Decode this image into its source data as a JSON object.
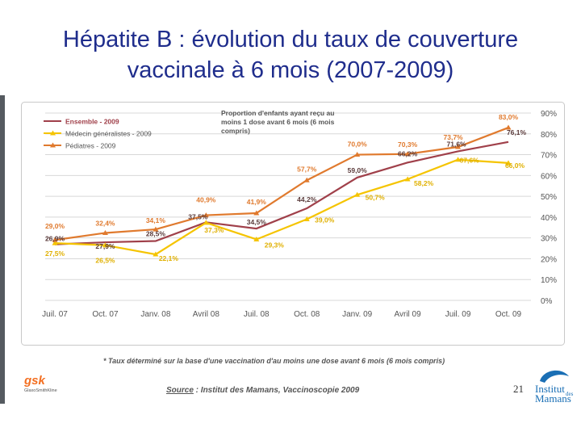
{
  "slide": {
    "title_line1": "Hépatite B : évolution du taux de couverture",
    "title_line2": "vaccinale à 6 mois (2007-2009)",
    "footnote": "* Taux déterminé sur la base d'une vaccination d'au moins une dose avant 6 mois (6 mois compris)",
    "source_label": "Source",
    "source_text": " : Institut des Mamans, Vaccinoscopie 2009",
    "page_number": "21",
    "logo_left": "gsk",
    "logo_left_sub": "GlaxoSmithKline",
    "logo_right_line1": "Institut",
    "logo_right_line2": "des",
    "logo_right_line3": "Mamans"
  },
  "chart_data": {
    "type": "line",
    "title": "Proportion d'enfants ayant reçu au moins 1 dose avant 6 mois (6 mois compris)",
    "title_lines": [
      "Proportion d'enfants ayant reçu au",
      "moins 1 dose avant 6 mois (6 mois",
      "compris)"
    ],
    "categories": [
      "Juil. 07",
      "Oct. 07",
      "Janv. 08",
      "Avril 08",
      "Juil. 08",
      "Oct. 08",
      "Janv. 09",
      "Avril 09",
      "Juil. 09",
      "Oct. 09"
    ],
    "series": [
      {
        "name": "Ensemble - 2009",
        "color": "#a0404a",
        "values": [
          26.9,
          27.9,
          28.5,
          37.5,
          34.5,
          44.2,
          59.0,
          66.2,
          71.6,
          76.1
        ],
        "labels": [
          "26,9%",
          "27,9%",
          "28,5%",
          "37,5%",
          "34,5%",
          "44,2%",
          "59,0%",
          "66,2%",
          "71,6%",
          "76,1%"
        ]
      },
      {
        "name": "Médecin généralistes - 2009",
        "color": "#f5c400",
        "values": [
          27.5,
          26.5,
          22.1,
          37.3,
          29.3,
          39.0,
          50.7,
          58.2,
          67.6,
          66.0
        ],
        "labels": [
          "27,5%",
          "26,5%",
          "22,1%",
          "37,3%",
          "29,3%",
          "39,0%",
          "50,7%",
          "58,2%",
          "67,6%",
          "66,0%"
        ]
      },
      {
        "name": "Pédiatres - 2009",
        "color": "#e07a2e",
        "values": [
          29.0,
          32.4,
          34.1,
          40.9,
          41.9,
          57.7,
          70.0,
          70.3,
          73.7,
          83.0
        ],
        "labels": [
          "29,0%",
          "32,4%",
          "34,1%",
          "40,9%",
          "41,9%",
          "57,7%",
          "70,0%",
          "70,3%",
          "73,7%",
          "83,0%"
        ]
      }
    ],
    "ylim": [
      0,
      90
    ],
    "yticks": [
      "0%",
      "10%",
      "20%",
      "30%",
      "40%",
      "50%",
      "60%",
      "70%",
      "80%",
      "90%"
    ],
    "y_axis_side": "right",
    "grid": true,
    "legend_position": "top-left"
  }
}
